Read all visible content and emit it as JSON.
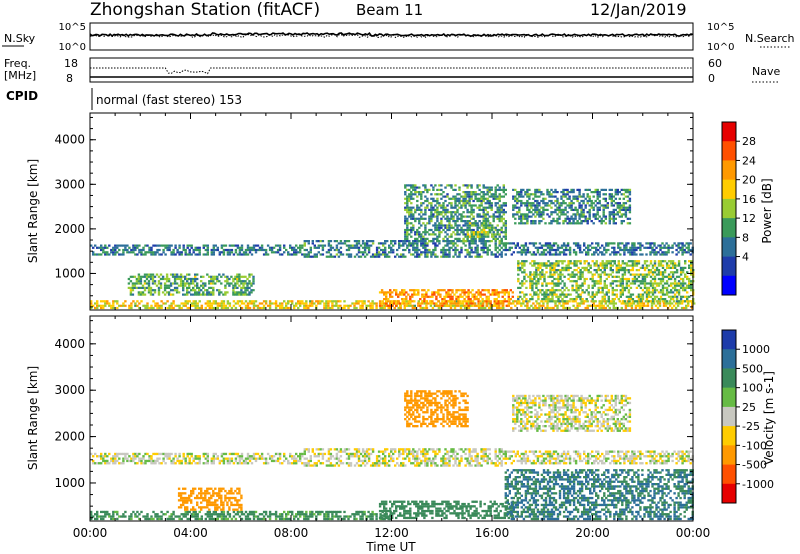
{
  "header": {
    "station": "Zhongshan Station (fitACF)",
    "beam": "Beam 11",
    "date": "12/Jan/2019"
  },
  "noise_panel": {
    "left_label": "N.Sky",
    "left_ticks": [
      "10^5",
      "10^0"
    ],
    "right_ticks": [
      "10^5",
      "10^0"
    ],
    "right_label": "N.Search"
  },
  "freq_panel": {
    "left_label_1": "Freq.",
    "left_label_2": "[MHz]",
    "left_ticks": [
      "18",
      "8"
    ],
    "right_ticks": [
      "60",
      "0"
    ],
    "right_label": "Nave"
  },
  "cpid": {
    "label": "CPID",
    "text": "normal (fast stereo) 153"
  },
  "chart_data": [
    {
      "type": "heatmap",
      "name": "power",
      "xlabel": "Time UT",
      "ylabel": "Slant Range [km]",
      "x_ticks": [
        "00:00",
        "04:00",
        "08:00",
        "12:00",
        "16:00",
        "20:00",
        "00:00"
      ],
      "xlim_hours": [
        0,
        24
      ],
      "y_ticks": [
        1000,
        2000,
        3000,
        4000
      ],
      "ylim": [
        180,
        4600
      ],
      "colorbar": {
        "label": "Power [dB]",
        "ticks": [
          "28",
          "24",
          "20",
          "16",
          "12",
          "8",
          "4"
        ],
        "range": [
          0,
          30
        ],
        "colors": [
          "#e60000",
          "#ff5000",
          "#ff9900",
          "#ffcc00",
          "#99cc33",
          "#3a9a5a",
          "#2c6f99",
          "#1e3caa",
          "#0000ff"
        ]
      },
      "bands": [
        {
          "t0": 0.0,
          "t1": 8.5,
          "r0": 1400,
          "r1": 1650,
          "p": 8
        },
        {
          "t0": 8.5,
          "t1": 16.5,
          "r0": 1350,
          "r1": 1750,
          "p": 9
        },
        {
          "t0": 16.5,
          "t1": 24.0,
          "r0": 1400,
          "r1": 1700,
          "p": 8
        },
        {
          "t0": 0.0,
          "t1": 24.0,
          "r0": 200,
          "r1": 380,
          "p": 18
        },
        {
          "t0": 11.5,
          "t1": 16.8,
          "r0": 250,
          "r1": 650,
          "p": 22
        },
        {
          "t0": 1.5,
          "t1": 6.5,
          "r0": 500,
          "r1": 1000,
          "p": 12
        },
        {
          "t0": 12.5,
          "t1": 16.5,
          "r0": 1700,
          "r1": 3000,
          "p": 10
        },
        {
          "t0": 16.8,
          "t1": 21.5,
          "r0": 2100,
          "r1": 2900,
          "p": 9
        },
        {
          "t0": 17.0,
          "t1": 24.0,
          "r0": 350,
          "r1": 1300,
          "p": 14
        },
        {
          "t0": 15.0,
          "t1": 16.0,
          "r0": 1800,
          "r1": 2200,
          "p": 14
        }
      ]
    },
    {
      "type": "heatmap",
      "name": "velocity",
      "xlabel": "Time UT",
      "ylabel": "Slant Range [km]",
      "x_ticks": [
        "00:00",
        "04:00",
        "08:00",
        "12:00",
        "16:00",
        "20:00",
        "00:00"
      ],
      "xlim_hours": [
        0,
        24
      ],
      "y_ticks": [
        1000,
        2000,
        3000,
        4000
      ],
      "ylim": [
        180,
        4600
      ],
      "colorbar": {
        "label": "Velocity [m s-1]",
        "ticks": [
          "1000",
          "500",
          "100",
          "25",
          "-25",
          "-100",
          "-500",
          "-1000"
        ],
        "colors": [
          "#1e3caa",
          "#2c6f99",
          "#3a8a5a",
          "#66bb44",
          "#c8c8c0",
          "#ffcc00",
          "#ff9900",
          "#ff5000",
          "#e60000"
        ]
      },
      "bands": [
        {
          "t0": 0.0,
          "t1": 8.5,
          "r0": 1400,
          "r1": 1650,
          "v": 0
        },
        {
          "t0": 8.5,
          "t1": 16.5,
          "r0": 1350,
          "r1": 1750,
          "v": 0
        },
        {
          "t0": 16.5,
          "t1": 24.0,
          "r0": 1400,
          "r1": 1700,
          "v": 0
        },
        {
          "t0": 0.0,
          "t1": 12.0,
          "r0": 200,
          "r1": 380,
          "v": 100
        },
        {
          "t0": 3.5,
          "t1": 6.0,
          "r0": 400,
          "r1": 900,
          "v": -200
        },
        {
          "t0": 11.5,
          "t1": 16.8,
          "r0": 220,
          "r1": 600,
          "v": 150
        },
        {
          "t0": 12.5,
          "t1": 15.0,
          "r0": 2200,
          "r1": 3000,
          "v": -150
        },
        {
          "t0": 16.8,
          "t1": 21.5,
          "r0": 2100,
          "r1": 2900,
          "v": 0
        },
        {
          "t0": 16.5,
          "t1": 24.0,
          "r0": 200,
          "r1": 1300,
          "v": 300
        }
      ]
    }
  ]
}
